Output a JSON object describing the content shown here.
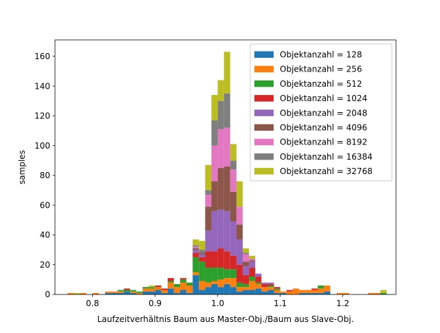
{
  "chart_data": {
    "type": "bar",
    "stacked": true,
    "xlabel": "Laufzeitverhältnis Baum aus Master-Obj./Baum aus Slave-Obj.",
    "ylabel": "samples",
    "xlim": [
      0.74,
      1.285
    ],
    "ylim": [
      0,
      171
    ],
    "x_ticks": [
      0.8,
      0.9,
      1.0,
      1.1,
      1.2
    ],
    "x_tick_labels": [
      "0.8",
      "0.9",
      "1.0",
      "1.1",
      "1.2"
    ],
    "y_ticks": [
      0,
      20,
      40,
      60,
      80,
      100,
      120,
      140,
      160
    ],
    "y_tick_labels": [
      "0",
      "20",
      "40",
      "60",
      "80",
      "100",
      "120",
      "140",
      "160"
    ],
    "legend_position": "upper right",
    "bin_edges": [
      0.76,
      0.77,
      0.78,
      0.79,
      0.8,
      0.81,
      0.82,
      0.83,
      0.84,
      0.85,
      0.86,
      0.87,
      0.88,
      0.89,
      0.9,
      0.91,
      0.92,
      0.93,
      0.94,
      0.95,
      0.96,
      0.97,
      0.98,
      0.99,
      1.0,
      1.01,
      1.02,
      1.03,
      1.04,
      1.05,
      1.06,
      1.07,
      1.08,
      1.09,
      1.1,
      1.11,
      1.12,
      1.13,
      1.14,
      1.15,
      1.16,
      1.17,
      1.18,
      1.19,
      1.2,
      1.21,
      1.22,
      1.23,
      1.24,
      1.25,
      1.26,
      1.27
    ],
    "series": [
      {
        "name": "Objektanzahl = 128",
        "color": "#1f77b4",
        "values": [
          0,
          0,
          0,
          0,
          0,
          0,
          1,
          1,
          1,
          2,
          1,
          0,
          2,
          2,
          3,
          1,
          4,
          1,
          3,
          1,
          13,
          3,
          5,
          7,
          5,
          7,
          5,
          2,
          3,
          3,
          4,
          2,
          3,
          1,
          1,
          0,
          0,
          1,
          1,
          1,
          1,
          2,
          0,
          0,
          0,
          0,
          0,
          0,
          0,
          0,
          0
        ]
      },
      {
        "name": "Objektanzahl = 256",
        "color": "#ff7f0e",
        "values": [
          1,
          0,
          1,
          0,
          1,
          0,
          1,
          1,
          1,
          0,
          1,
          1,
          2,
          2,
          2,
          2,
          4,
          4,
          5,
          5,
          2,
          6,
          3,
          2,
          5,
          4,
          6,
          3,
          2,
          6,
          3,
          3,
          2,
          2,
          1,
          2,
          4,
          2,
          2,
          2,
          3,
          4,
          0,
          1,
          1,
          0,
          0,
          0,
          1,
          1,
          0
        ]
      },
      {
        "name": "Objektanzahl = 512",
        "color": "#2ca02c",
        "values": [
          0,
          0,
          0,
          0,
          0,
          0,
          0,
          0,
          1,
          1,
          1,
          1,
          1,
          1,
          0,
          0,
          1,
          2,
          2,
          2,
          10,
          13,
          10,
          9,
          8,
          6,
          6,
          3,
          2,
          3,
          1,
          0,
          1,
          1,
          0,
          0,
          0,
          0,
          0,
          0,
          2,
          0,
          0,
          0,
          0,
          0,
          0,
          0,
          0,
          0,
          1
        ]
      },
      {
        "name": "Objektanzahl = 1024",
        "color": "#d62728",
        "values": [
          0,
          0,
          0,
          0,
          0,
          0,
          0,
          0,
          0,
          1,
          0,
          0,
          0,
          0,
          1,
          1,
          2,
          0,
          1,
          0,
          3,
          3,
          11,
          11,
          13,
          12,
          9,
          12,
          6,
          6,
          4,
          2,
          1,
          1,
          0,
          1,
          0,
          0,
          0,
          1,
          0,
          0,
          0,
          0,
          0,
          0,
          0,
          0,
          0,
          0,
          0
        ]
      },
      {
        "name": "Objektanzahl = 2048",
        "color": "#9467bd",
        "values": [
          0,
          0,
          0,
          0,
          0,
          0,
          0,
          0,
          0,
          0,
          0,
          0,
          0,
          0,
          0,
          0,
          0,
          0,
          0,
          0,
          2,
          2,
          14,
          27,
          26,
          27,
          23,
          17,
          6,
          4,
          2,
          1,
          1,
          0,
          0,
          0,
          0,
          0,
          0,
          0,
          0,
          0,
          0,
          0,
          0,
          0,
          0,
          0,
          0,
          0,
          0
        ]
      },
      {
        "name": "Objektanzahl = 4096",
        "color": "#8c564b",
        "values": [
          0,
          0,
          0,
          0,
          0,
          0,
          0,
          0,
          0,
          0,
          0,
          0,
          0,
          0,
          0,
          0,
          0,
          0,
          0,
          0,
          1,
          1,
          16,
          20,
          28,
          30,
          20,
          10,
          3,
          1,
          0,
          0,
          0,
          0,
          0,
          0,
          0,
          0,
          0,
          0,
          0,
          0,
          0,
          0,
          0,
          0,
          0,
          0,
          0,
          0,
          0
        ]
      },
      {
        "name": "Objektanzahl = 8192",
        "color": "#e377c2",
        "values": [
          0,
          0,
          0,
          0,
          0,
          0,
          0,
          0,
          0,
          0,
          0,
          0,
          0,
          0,
          0,
          0,
          0,
          0,
          0,
          0,
          1,
          0,
          8,
          24,
          26,
          26,
          15,
          12,
          5,
          1,
          0,
          0,
          0,
          0,
          0,
          0,
          0,
          0,
          0,
          0,
          0,
          0,
          0,
          0,
          0,
          0,
          0,
          0,
          0,
          0,
          0
        ]
      },
      {
        "name": "Objektanzahl = 16384",
        "color": "#7f7f7f",
        "values": [
          0,
          0,
          0,
          0,
          0,
          0,
          0,
          0,
          0,
          0,
          0,
          0,
          0,
          0,
          0,
          0,
          0,
          0,
          0,
          0,
          1,
          2,
          3,
          17,
          19,
          23,
          6,
          0,
          1,
          0,
          0,
          0,
          0,
          0,
          0,
          0,
          0,
          0,
          0,
          0,
          0,
          0,
          0,
          0,
          0,
          0,
          0,
          0,
          0,
          0,
          0
        ]
      },
      {
        "name": "Objektanzahl = 32768",
        "color": "#bcbd22",
        "values": [
          0,
          1,
          0,
          0,
          0,
          0,
          0,
          0,
          0,
          0,
          0,
          0,
          0,
          1,
          0,
          0,
          0,
          0,
          0,
          0,
          4,
          6,
          17,
          17,
          14,
          28,
          11,
          17,
          3,
          2,
          0,
          0,
          0,
          0,
          0,
          0,
          0,
          0,
          0,
          0,
          0,
          0,
          0,
          0,
          0,
          0,
          0,
          0,
          0,
          0,
          2
        ]
      }
    ]
  }
}
